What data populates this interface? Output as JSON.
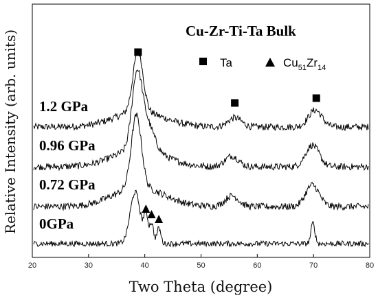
{
  "chart_data": {
    "type": "line",
    "title": "Cu-Zr-Ti-Ta  Bulk",
    "xlabel": "Two Theta (degree)",
    "ylabel": "Relative Intensity (arb. units)",
    "xlim": [
      20,
      80
    ],
    "xticks": [
      "20",
      "30",
      "40",
      "50",
      "60",
      "70",
      "80"
    ],
    "grid": false,
    "legend": {
      "placement": "top-right",
      "entries": [
        {
          "marker": "square",
          "label": "Ta"
        },
        {
          "marker": "triangle",
          "label_main": "Cu",
          "sub1": "51",
          "mid": "Zr",
          "sub2": "14"
        }
      ]
    },
    "series": [
      {
        "name": "1.2 GPa",
        "peaks": [
          {
            "x": 38.8,
            "h": 1.0
          },
          {
            "x": 56.0,
            "h": 0.15
          },
          {
            "x": 70.3,
            "h": 0.28
          }
        ]
      },
      {
        "name": "0.96 GPa",
        "peaks": [
          {
            "x": 38.6,
            "h": 1.0
          },
          {
            "x": 40.5,
            "h": 0.35
          },
          {
            "x": 55.5,
            "h": 0.15
          },
          {
            "x": 69.8,
            "h": 0.3
          }
        ]
      },
      {
        "name": "0.72 GPa",
        "peaks": [
          {
            "x": 38.5,
            "h": 1.0
          },
          {
            "x": 55.5,
            "h": 0.15
          },
          {
            "x": 69.8,
            "h": 0.3
          }
        ]
      },
      {
        "name": "0GPa",
        "peaks": [
          {
            "x": 38.3,
            "h": 1.0
          },
          {
            "x": 40.2,
            "h": 0.55
          },
          {
            "x": 41.2,
            "h": 0.4
          },
          {
            "x": 42.5,
            "h": 0.3
          },
          {
            "x": 69.9,
            "h": 0.4
          }
        ]
      }
    ],
    "markers": {
      "ta": [
        38.8,
        56.0,
        70.5
      ],
      "cu51zr14": [
        40.2,
        41.2,
        42.5
      ]
    }
  }
}
